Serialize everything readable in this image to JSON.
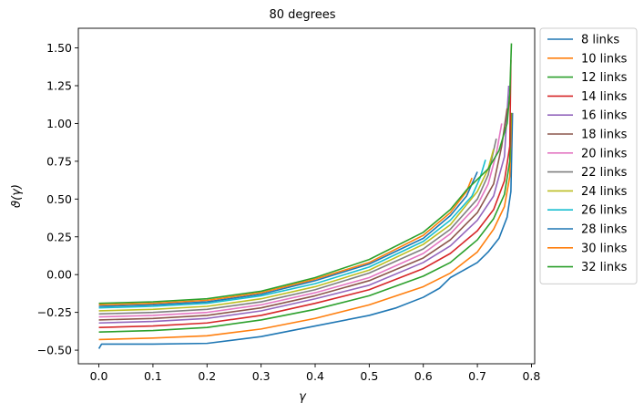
{
  "chart_data": {
    "type": "line",
    "title": "80 degrees",
    "xlabel": "γ",
    "ylabel": "ϑ(γ)",
    "xlim": [
      -0.038,
      0.806
    ],
    "ylim": [
      -0.59,
      1.63
    ],
    "xticks": [
      0.0,
      0.1,
      0.2,
      0.3,
      0.4,
      0.5,
      0.6,
      0.7,
      0.8
    ],
    "xtick_labels": [
      "0.0",
      "0.1",
      "0.2",
      "0.3",
      "0.4",
      "0.5",
      "0.6",
      "0.7",
      "0.8"
    ],
    "yticks": [
      -0.5,
      -0.25,
      0.0,
      0.25,
      0.5,
      0.75,
      1.0,
      1.25,
      1.5
    ],
    "ytick_labels": [
      "−0.50",
      "−0.25",
      "0.00",
      "0.25",
      "0.50",
      "0.75",
      "1.00",
      "1.25",
      "1.50"
    ],
    "grid": false,
    "legend_position": "outside-right-top",
    "series": [
      {
        "name": "8 links",
        "color": "#1f77b4",
        "start": -0.49,
        "jump": 0.03,
        "xend": 0.765,
        "spike": 1.07,
        "points": [
          [
            0.0,
            -0.49
          ],
          [
            0.005,
            -0.46
          ],
          [
            0.05,
            -0.46
          ],
          [
            0.1,
            -0.46
          ],
          [
            0.2,
            -0.455
          ],
          [
            0.3,
            -0.41
          ],
          [
            0.4,
            -0.34
          ],
          [
            0.5,
            -0.27
          ],
          [
            0.55,
            -0.22
          ],
          [
            0.6,
            -0.15
          ],
          [
            0.63,
            -0.09
          ],
          [
            0.65,
            -0.02
          ],
          [
            0.7,
            0.08
          ],
          [
            0.72,
            0.15
          ],
          [
            0.74,
            0.24
          ],
          [
            0.755,
            0.38
          ],
          [
            0.762,
            0.55
          ],
          [
            0.765,
            1.07
          ]
        ]
      },
      {
        "name": "10 links",
        "color": "#ff7f0e",
        "start": -0.43,
        "jump": 0.0,
        "xend": 0.763,
        "spike": 1.07,
        "points": [
          [
            0.0,
            -0.43
          ],
          [
            0.1,
            -0.42
          ],
          [
            0.2,
            -0.405
          ],
          [
            0.3,
            -0.36
          ],
          [
            0.4,
            -0.29
          ],
          [
            0.5,
            -0.2
          ],
          [
            0.6,
            -0.08
          ],
          [
            0.65,
            0.01
          ],
          [
            0.7,
            0.15
          ],
          [
            0.73,
            0.3
          ],
          [
            0.75,
            0.45
          ],
          [
            0.76,
            0.65
          ],
          [
            0.763,
            1.07
          ]
        ]
      },
      {
        "name": "12 links",
        "color": "#2ca02c",
        "start": -0.38,
        "jump": 0.0,
        "xend": 0.762,
        "spike": 1.07,
        "points": [
          [
            0.0,
            -0.38
          ],
          [
            0.1,
            -0.37
          ],
          [
            0.2,
            -0.35
          ],
          [
            0.3,
            -0.3
          ],
          [
            0.4,
            -0.23
          ],
          [
            0.5,
            -0.14
          ],
          [
            0.6,
            -0.01
          ],
          [
            0.65,
            0.08
          ],
          [
            0.7,
            0.23
          ],
          [
            0.73,
            0.37
          ],
          [
            0.75,
            0.53
          ],
          [
            0.76,
            0.75
          ],
          [
            0.762,
            1.07
          ]
        ]
      },
      {
        "name": "14 links",
        "color": "#d62728",
        "start": -0.35,
        "jump": 0.0,
        "xend": 0.762,
        "spike": 1.42,
        "points": [
          [
            0.0,
            -0.35
          ],
          [
            0.1,
            -0.34
          ],
          [
            0.2,
            -0.32
          ],
          [
            0.3,
            -0.27
          ],
          [
            0.4,
            -0.19
          ],
          [
            0.5,
            -0.1
          ],
          [
            0.6,
            0.04
          ],
          [
            0.65,
            0.14
          ],
          [
            0.7,
            0.29
          ],
          [
            0.73,
            0.43
          ],
          [
            0.75,
            0.62
          ],
          [
            0.76,
            0.85
          ],
          [
            0.762,
            1.42
          ]
        ]
      },
      {
        "name": "16 links",
        "color": "#9467bd",
        "start": -0.32,
        "jump": 0.0,
        "xend": 0.758,
        "spike": 1.25,
        "points": [
          [
            0.0,
            -0.32
          ],
          [
            0.1,
            -0.31
          ],
          [
            0.2,
            -0.29
          ],
          [
            0.3,
            -0.24
          ],
          [
            0.4,
            -0.16
          ],
          [
            0.5,
            -0.07
          ],
          [
            0.6,
            0.08
          ],
          [
            0.65,
            0.19
          ],
          [
            0.7,
            0.36
          ],
          [
            0.73,
            0.52
          ],
          [
            0.75,
            0.78
          ],
          [
            0.758,
            1.25
          ]
        ]
      },
      {
        "name": "18 links",
        "color": "#8c564b",
        "start": -0.3,
        "jump": 0.0,
        "xend": 0.755,
        "spike": 1.1,
        "points": [
          [
            0.0,
            -0.3
          ],
          [
            0.1,
            -0.29
          ],
          [
            0.2,
            -0.27
          ],
          [
            0.3,
            -0.22
          ],
          [
            0.4,
            -0.14
          ],
          [
            0.5,
            -0.04
          ],
          [
            0.6,
            0.11
          ],
          [
            0.65,
            0.23
          ],
          [
            0.7,
            0.41
          ],
          [
            0.73,
            0.6
          ],
          [
            0.745,
            0.85
          ],
          [
            0.755,
            1.1
          ]
        ]
      },
      {
        "name": "20 links",
        "color": "#e377c2",
        "start": -0.28,
        "jump": 0.0,
        "xend": 0.745,
        "spike": 1.0,
        "points": [
          [
            0.0,
            -0.28
          ],
          [
            0.1,
            -0.27
          ],
          [
            0.2,
            -0.25
          ],
          [
            0.3,
            -0.2
          ],
          [
            0.4,
            -0.12
          ],
          [
            0.5,
            -0.02
          ],
          [
            0.6,
            0.14
          ],
          [
            0.65,
            0.27
          ],
          [
            0.7,
            0.46
          ],
          [
            0.72,
            0.6
          ],
          [
            0.735,
            0.8
          ],
          [
            0.745,
            1.0
          ]
        ]
      },
      {
        "name": "22 links",
        "color": "#7f7f7f",
        "start": -0.26,
        "jump": 0.0,
        "xend": 0.735,
        "spike": 0.9,
        "points": [
          [
            0.0,
            -0.26
          ],
          [
            0.1,
            -0.25
          ],
          [
            0.2,
            -0.23
          ],
          [
            0.3,
            -0.18
          ],
          [
            0.4,
            -0.1
          ],
          [
            0.5,
            0.01
          ],
          [
            0.6,
            0.17
          ],
          [
            0.65,
            0.3
          ],
          [
            0.7,
            0.5
          ],
          [
            0.72,
            0.66
          ],
          [
            0.735,
            0.9
          ]
        ]
      },
      {
        "name": "24 links",
        "color": "#bcbd22",
        "start": -0.24,
        "jump": 0.0,
        "xend": 0.73,
        "spike": 0.83,
        "points": [
          [
            0.0,
            -0.24
          ],
          [
            0.1,
            -0.23
          ],
          [
            0.2,
            -0.21
          ],
          [
            0.3,
            -0.16
          ],
          [
            0.4,
            -0.08
          ],
          [
            0.5,
            0.03
          ],
          [
            0.6,
            0.2
          ],
          [
            0.65,
            0.33
          ],
          [
            0.7,
            0.55
          ],
          [
            0.72,
            0.7
          ],
          [
            0.73,
            0.83
          ]
        ]
      },
      {
        "name": "26 links",
        "color": "#17becf",
        "start": -0.22,
        "jump": 0.0,
        "xend": 0.715,
        "spike": 0.76,
        "points": [
          [
            0.0,
            -0.22
          ],
          [
            0.1,
            -0.21
          ],
          [
            0.2,
            -0.19
          ],
          [
            0.3,
            -0.14
          ],
          [
            0.4,
            -0.06
          ],
          [
            0.5,
            0.05
          ],
          [
            0.6,
            0.22
          ],
          [
            0.65,
            0.36
          ],
          [
            0.69,
            0.52
          ],
          [
            0.705,
            0.64
          ],
          [
            0.715,
            0.76
          ]
        ]
      },
      {
        "name": "28 links",
        "color": "#1f77b4",
        "start": -0.21,
        "jump": 0.0,
        "xend": 0.7,
        "spike": 0.68,
        "points": [
          [
            0.0,
            -0.21
          ],
          [
            0.1,
            -0.2
          ],
          [
            0.2,
            -0.18
          ],
          [
            0.3,
            -0.13
          ],
          [
            0.4,
            -0.04
          ],
          [
            0.5,
            0.07
          ],
          [
            0.6,
            0.24
          ],
          [
            0.65,
            0.39
          ],
          [
            0.68,
            0.52
          ],
          [
            0.7,
            0.68
          ]
        ]
      },
      {
        "name": "30 links",
        "color": "#ff7f0e",
        "start": -0.2,
        "jump": 0.0,
        "xend": 0.69,
        "spike": 0.64,
        "points": [
          [
            0.0,
            -0.2
          ],
          [
            0.1,
            -0.19
          ],
          [
            0.2,
            -0.17
          ],
          [
            0.3,
            -0.12
          ],
          [
            0.4,
            -0.03
          ],
          [
            0.5,
            0.08
          ],
          [
            0.6,
            0.26
          ],
          [
            0.65,
            0.41
          ],
          [
            0.68,
            0.55
          ],
          [
            0.69,
            0.64
          ]
        ]
      },
      {
        "name": "32 links",
        "color": "#2ca02c",
        "start": -0.19,
        "jump": 0.0,
        "xend": 0.763,
        "spike": 1.53,
        "points": [
          [
            0.0,
            -0.19
          ],
          [
            0.1,
            -0.18
          ],
          [
            0.2,
            -0.16
          ],
          [
            0.3,
            -0.11
          ],
          [
            0.4,
            -0.02
          ],
          [
            0.5,
            0.1
          ],
          [
            0.6,
            0.28
          ],
          [
            0.65,
            0.43
          ],
          [
            0.68,
            0.56
          ],
          [
            0.7,
            0.63
          ],
          [
            0.72,
            0.7
          ],
          [
            0.74,
            0.82
          ],
          [
            0.755,
            1.0
          ],
          [
            0.76,
            1.2
          ],
          [
            0.763,
            1.53
          ]
        ]
      }
    ]
  }
}
